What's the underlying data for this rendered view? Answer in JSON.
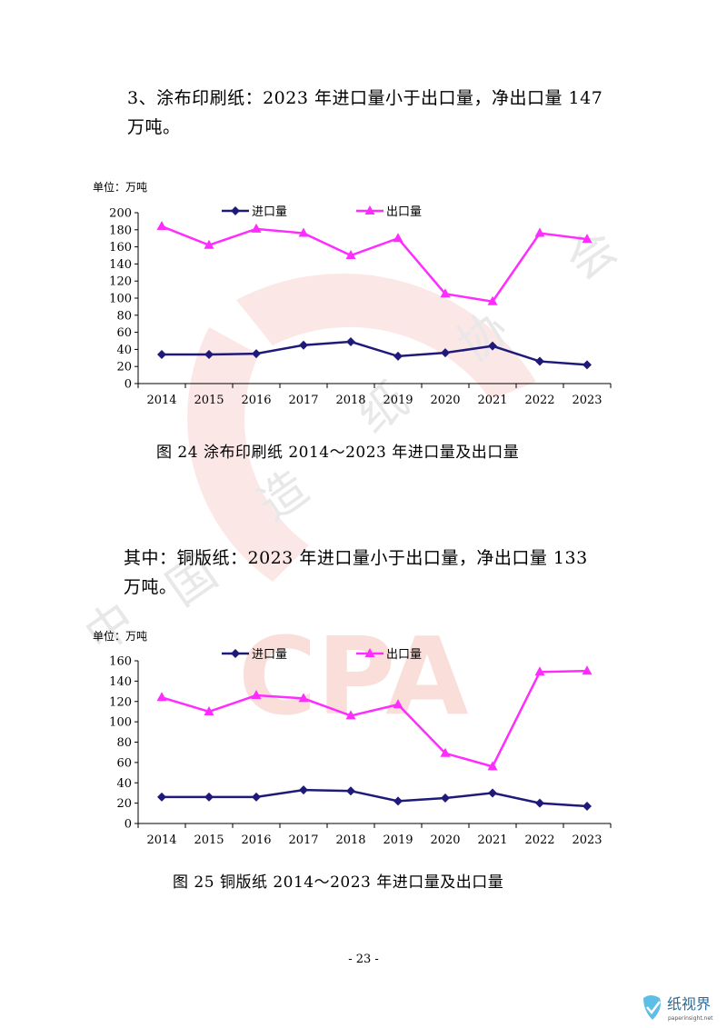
{
  "watermark": {
    "letters": "CPA",
    "chars": [
      "中",
      "国",
      "造",
      "纸",
      "协",
      "会"
    ],
    "color": "#e23c2a"
  },
  "para1": {
    "line1": "3、涂布印刷纸：2023 年进口量小于出口量，净出口量 147",
    "line2": "万吨。"
  },
  "para2": {
    "line1": "其中：铜版纸：2023 年进口量小于出口量，净出口量 133",
    "line2": "万吨。"
  },
  "caption1": "图 24   涂布印刷纸 2014～2023 年进口量及出口量",
  "caption2": "图 25   铜版纸 2014～2023 年进口量及出口量",
  "page_number": "- 23 -",
  "logo": {
    "text": "纸视界",
    "subtext": "paperinsight.net"
  },
  "chart_data": [
    {
      "type": "line",
      "unit_label": "单位：万吨",
      "categories": [
        "2014",
        "2015",
        "2016",
        "2017",
        "2018",
        "2019",
        "2020",
        "2021",
        "2022",
        "2023"
      ],
      "ylim": [
        0,
        200
      ],
      "yticks": [
        0,
        20,
        40,
        60,
        80,
        100,
        120,
        140,
        160,
        180,
        200
      ],
      "legend_position": "top",
      "grid": false,
      "series": [
        {
          "name": "进口量",
          "color": "#1f1a7a",
          "marker": "diamond",
          "values": [
            34,
            34,
            35,
            45,
            49,
            32,
            36,
            44,
            26,
            22
          ]
        },
        {
          "name": "出口量",
          "color": "#ff2cff",
          "marker": "triangle",
          "values": [
            184,
            162,
            181,
            176,
            150,
            170,
            105,
            96,
            176,
            169
          ]
        }
      ]
    },
    {
      "type": "line",
      "unit_label": "单位：万吨",
      "categories": [
        "2014",
        "2015",
        "2016",
        "2017",
        "2018",
        "2019",
        "2020",
        "2021",
        "2022",
        "2023"
      ],
      "ylim": [
        0,
        160
      ],
      "yticks": [
        0,
        20,
        40,
        60,
        80,
        100,
        120,
        140,
        160
      ],
      "legend_position": "top",
      "grid": false,
      "series": [
        {
          "name": "进口量",
          "color": "#1f1a7a",
          "marker": "diamond",
          "values": [
            26,
            26,
            26,
            33,
            32,
            22,
            25,
            30,
            20,
            17
          ]
        },
        {
          "name": "出口量",
          "color": "#ff2cff",
          "marker": "triangle",
          "values": [
            124,
            110,
            126,
            123,
            106,
            117,
            69,
            56,
            149,
            150
          ]
        }
      ]
    }
  ]
}
